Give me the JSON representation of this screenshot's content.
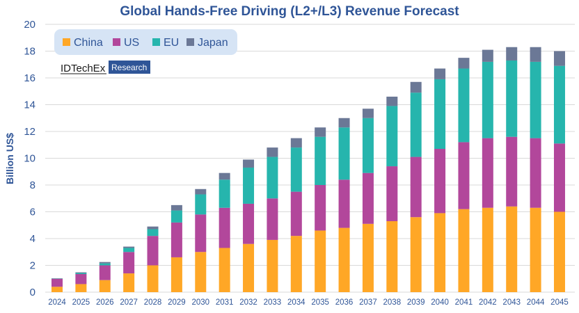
{
  "chart_data": {
    "type": "bar",
    "stacked": true,
    "title": "Global Hands-Free Driving (L2+/L3) Revenue Forecast",
    "xlabel": "",
    "ylabel": "Billion US$",
    "ylim": [
      0,
      20
    ],
    "yticks": [
      0,
      2,
      4,
      6,
      8,
      10,
      12,
      14,
      16,
      18,
      20
    ],
    "grid": true,
    "legend_position": "top-left",
    "categories": [
      "2024",
      "2025",
      "2026",
      "2027",
      "2028",
      "2029",
      "2030",
      "2031",
      "2032",
      "2033",
      "2034",
      "2035",
      "2036",
      "2037",
      "2038",
      "2039",
      "2040",
      "2041",
      "2042",
      "2043",
      "2044",
      "2045"
    ],
    "series": [
      {
        "name": "China",
        "color": "#ffa726",
        "values": [
          0.4,
          0.6,
          0.9,
          1.4,
          2.0,
          2.6,
          3.0,
          3.3,
          3.6,
          3.9,
          4.2,
          4.6,
          4.8,
          5.1,
          5.3,
          5.6,
          5.9,
          6.2,
          6.3,
          6.4,
          6.3,
          6.0
        ]
      },
      {
        "name": "US",
        "color": "#b2479b",
        "values": [
          0.6,
          0.75,
          1.1,
          1.6,
          2.2,
          2.6,
          2.8,
          3.0,
          3.0,
          3.1,
          3.3,
          3.4,
          3.6,
          3.8,
          4.1,
          4.5,
          4.8,
          5.0,
          5.2,
          5.2,
          5.2,
          5.1
        ]
      },
      {
        "name": "EU",
        "color": "#26b5ad",
        "values": [
          0.02,
          0.08,
          0.15,
          0.3,
          0.5,
          0.9,
          1.5,
          2.1,
          2.7,
          3.1,
          3.3,
          3.6,
          3.9,
          4.1,
          4.5,
          4.8,
          5.2,
          5.5,
          5.7,
          5.7,
          5.7,
          5.8
        ]
      },
      {
        "name": "Japan",
        "color": "#6b7896",
        "values": [
          0.02,
          0.05,
          0.1,
          0.1,
          0.2,
          0.4,
          0.4,
          0.5,
          0.6,
          0.7,
          0.7,
          0.7,
          0.7,
          0.7,
          0.7,
          0.8,
          0.8,
          0.8,
          0.9,
          1.0,
          1.1,
          1.1
        ]
      }
    ]
  },
  "branding": {
    "name": "IDTechEx",
    "tag": "Research",
    "name_color": "#1a1a1a",
    "tag_bg": "#2f5597"
  },
  "colors": {
    "text": "#2f5597",
    "legend_bg": "#d6e4f5",
    "grid": "#d9d9d9"
  }
}
